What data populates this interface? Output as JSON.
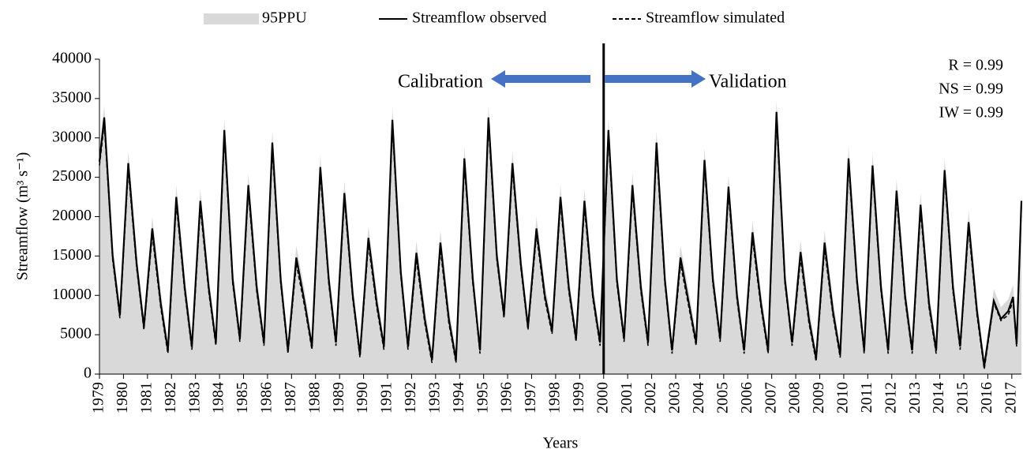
{
  "chart_data": {
    "type": "line",
    "ylabel": "Streamflow (m³ s⁻¹)",
    "xlabel": "Years",
    "xlim": [
      1979,
      2017.4
    ],
    "ylim": [
      0,
      40000
    ],
    "yticks": [
      0,
      5000,
      10000,
      15000,
      20000,
      25000,
      30000,
      35000,
      40000
    ],
    "xticks": [
      1979,
      1980,
      1981,
      1982,
      1983,
      1984,
      1985,
      1986,
      1987,
      1988,
      1989,
      1990,
      1991,
      1992,
      1993,
      1994,
      1995,
      1996,
      1997,
      1998,
      1999,
      2000,
      2001,
      2002,
      2003,
      2004,
      2005,
      2006,
      2007,
      2008,
      2009,
      2010,
      2011,
      2012,
      2013,
      2014,
      2015,
      2016,
      2017
    ],
    "divider_x": 2000,
    "annotations": {
      "left": "Calibration",
      "right": "Validation",
      "stats": [
        "R = 0.99",
        "NS = 0.99",
        "IW = 0.99"
      ]
    },
    "arrow_color": "#4472c4",
    "x": [
      1979.0,
      1979.2,
      1979.55,
      1979.85,
      1980.2,
      1980.55,
      1980.85,
      1981.2,
      1981.55,
      1981.85,
      1982.2,
      1982.55,
      1982.85,
      1983.2,
      1983.55,
      1983.85,
      1984.2,
      1984.55,
      1984.85,
      1985.2,
      1985.55,
      1985.85,
      1986.2,
      1986.55,
      1986.85,
      1987.2,
      1987.55,
      1987.85,
      1988.2,
      1988.55,
      1988.85,
      1989.2,
      1989.55,
      1989.85,
      1990.2,
      1990.55,
      1990.85,
      1991.2,
      1991.55,
      1991.85,
      1992.2,
      1992.55,
      1992.85,
      1993.2,
      1993.55,
      1993.85,
      1994.2,
      1994.55,
      1994.85,
      1995.2,
      1995.55,
      1995.85,
      1996.2,
      1996.55,
      1996.85,
      1997.2,
      1997.55,
      1997.85,
      1998.2,
      1998.55,
      1998.85,
      1999.2,
      1999.55,
      1999.85,
      2000.2,
      2000.55,
      2000.85,
      2001.2,
      2001.55,
      2001.85,
      2002.2,
      2002.55,
      2002.85,
      2003.2,
      2003.55,
      2003.85,
      2004.2,
      2004.55,
      2004.85,
      2005.2,
      2005.55,
      2005.85,
      2006.2,
      2006.55,
      2006.85,
      2007.2,
      2007.55,
      2007.85,
      2008.2,
      2008.55,
      2008.85,
      2009.2,
      2009.55,
      2009.85,
      2010.2,
      2010.55,
      2010.85,
      2011.2,
      2011.55,
      2011.85,
      2012.2,
      2012.55,
      2012.85,
      2013.2,
      2013.55,
      2013.85,
      2014.2,
      2014.55,
      2014.85,
      2015.2,
      2015.55,
      2015.85,
      2016.25,
      2016.55,
      2016.85,
      2017.05,
      2017.2,
      2017.4
    ],
    "series": [
      {
        "name": "95PPU",
        "kind": "area",
        "color": "#d9d9d9",
        "values": [
          28500,
          34100,
          16500,
          8500,
          28300,
          15500,
          7000,
          20000,
          10500,
          4000,
          24000,
          12500,
          4500,
          23500,
          12500,
          5000,
          32500,
          13500,
          5500,
          25500,
          12500,
          5000,
          30900,
          13500,
          4000,
          16300,
          10500,
          4500,
          27800,
          13500,
          5000,
          24500,
          11500,
          3500,
          18800,
          10500,
          4500,
          33800,
          14500,
          4500,
          16900,
          8500,
          2800,
          18200,
          8500,
          2800,
          28900,
          13500,
          4000,
          34100,
          16500,
          8500,
          28300,
          15500,
          7000,
          20000,
          11500,
          6500,
          24000,
          12500,
          5500,
          23500,
          11500,
          5000,
          32500,
          13500,
          5500,
          25500,
          12500,
          5000,
          30900,
          13500,
          4000,
          16300,
          10500,
          5000,
          28700,
          13500,
          5500,
          25300,
          11500,
          4000,
          19500,
          10500,
          4000,
          34800,
          13500,
          5000,
          17000,
          8500,
          3000,
          18200,
          9500,
          3500,
          28900,
          13500,
          4000,
          28000,
          12500,
          4000,
          24800,
          11500,
          4000,
          23000,
          10500,
          4000,
          27400,
          12500,
          4500,
          20800,
          9500,
          2000,
          10800,
          8500,
          9500,
          11300,
          4800,
          23000
        ]
      },
      {
        "name": "Streamflow observed",
        "kind": "solid",
        "color": "#000000",
        "values": [
          27000,
          32600,
          15000,
          7500,
          26800,
          14000,
          6000,
          18500,
          9000,
          3000,
          22500,
          11000,
          3500,
          22000,
          11000,
          4000,
          31000,
          12000,
          4500,
          24000,
          11000,
          4000,
          29400,
          12000,
          3000,
          14800,
          9000,
          3500,
          26300,
          12000,
          4000,
          23000,
          10000,
          2500,
          17300,
          9000,
          3500,
          32300,
          13000,
          3500,
          15400,
          7000,
          1800,
          16700,
          7000,
          1800,
          27400,
          12000,
          3000,
          32600,
          15000,
          7500,
          26800,
          14000,
          6000,
          18500,
          10000,
          5500,
          22500,
          11000,
          4500,
          22000,
          10000,
          4000,
          31000,
          12000,
          4500,
          24000,
          11000,
          4000,
          29400,
          12000,
          3000,
          14800,
          9000,
          4000,
          27200,
          12000,
          4500,
          23800,
          10000,
          3000,
          18000,
          9000,
          3000,
          33300,
          12000,
          4000,
          15500,
          7000,
          2000,
          16700,
          8000,
          2500,
          27400,
          12000,
          3000,
          26500,
          11000,
          3000,
          23300,
          10000,
          3000,
          21500,
          9000,
          3000,
          25900,
          11000,
          3500,
          19300,
          8000,
          1000,
          9300,
          7000,
          8000,
          9800,
          3800,
          22000
        ]
      },
      {
        "name": "Streamflow simulated",
        "kind": "dashed",
        "color": "#000000",
        "values": [
          26500,
          31800,
          14500,
          7100,
          26000,
          13500,
          5600,
          17700,
          8500,
          2600,
          21700,
          10500,
          3100,
          21200,
          10500,
          3600,
          30200,
          11500,
          4100,
          23200,
          10500,
          3600,
          28600,
          11500,
          2600,
          14000,
          8500,
          3100,
          25500,
          11500,
          3600,
          22200,
          9500,
          2100,
          16500,
          8500,
          3100,
          31500,
          12500,
          3100,
          14600,
          6500,
          1400,
          15900,
          6500,
          1400,
          26600,
          11500,
          2600,
          31800,
          14500,
          7100,
          26000,
          13500,
          5600,
          17700,
          9500,
          5100,
          21700,
          10500,
          4100,
          21200,
          9500,
          3600,
          30200,
          11500,
          4100,
          23200,
          10500,
          3600,
          28600,
          11500,
          2600,
          14000,
          8500,
          3600,
          26400,
          11500,
          4100,
          23000,
          9500,
          2600,
          17200,
          8500,
          2600,
          32500,
          11500,
          3600,
          14700,
          6500,
          1600,
          15900,
          7500,
          2100,
          26600,
          11500,
          2600,
          25700,
          10500,
          2600,
          22500,
          9500,
          2600,
          20700,
          8500,
          2600,
          25100,
          10500,
          3100,
          18500,
          7500,
          600,
          9000,
          6800,
          7500,
          9300,
          3500,
          21500
        ]
      }
    ]
  }
}
